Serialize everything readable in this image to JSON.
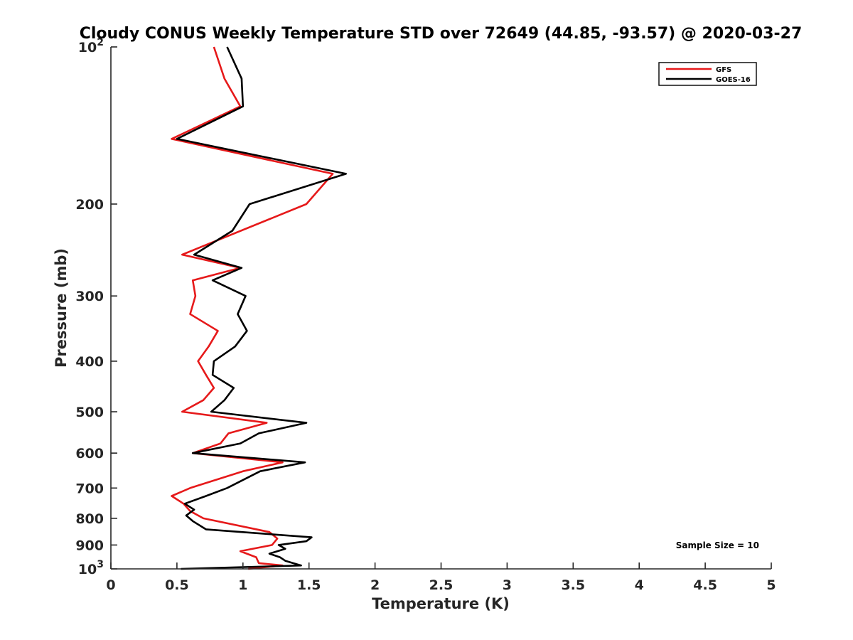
{
  "chart_data": {
    "type": "line",
    "title": "Cloudy CONUS Weekly Temperature STD over 72649 (44.85, -93.57) @ 2020-03-27",
    "xlabel": "Temperature (K)",
    "ylabel": "Pressure (mb)",
    "xlim": [
      0,
      5
    ],
    "ylim": [
      1000,
      100
    ],
    "yscale": "log",
    "y_reversed": true,
    "grid": false,
    "legend_position": "top-right",
    "x_ticks": [
      "0",
      "0.5",
      "1",
      "1.5",
      "2",
      "2.5",
      "3",
      "3.5",
      "4",
      "4.5",
      "5"
    ],
    "y_ticks": [
      {
        "value": 100,
        "base": "10",
        "exp": "2"
      },
      {
        "value": 200,
        "label": "200"
      },
      {
        "value": 300,
        "label": "300"
      },
      {
        "value": 400,
        "label": "400"
      },
      {
        "value": 500,
        "label": "500"
      },
      {
        "value": 600,
        "label": "600"
      },
      {
        "value": 700,
        "label": "700"
      },
      {
        "value": 800,
        "label": "800"
      },
      {
        "value": 900,
        "label": "900"
      },
      {
        "value": 1000,
        "base": "10",
        "exp": "3"
      }
    ],
    "annotation": "Sample Size = 10",
    "series": [
      {
        "name": "GFS",
        "color": "#e6191a",
        "points": [
          {
            "x": 0.78,
            "y": 100
          },
          {
            "x": 0.86,
            "y": 115
          },
          {
            "x": 0.98,
            "y": 130
          },
          {
            "x": 0.46,
            "y": 150
          },
          {
            "x": 1.68,
            "y": 175
          },
          {
            "x": 1.48,
            "y": 200
          },
          {
            "x": 0.54,
            "y": 250
          },
          {
            "x": 0.98,
            "y": 265
          },
          {
            "x": 0.62,
            "y": 280
          },
          {
            "x": 0.64,
            "y": 300
          },
          {
            "x": 0.6,
            "y": 325
          },
          {
            "x": 0.81,
            "y": 350
          },
          {
            "x": 0.74,
            "y": 375
          },
          {
            "x": 0.66,
            "y": 400
          },
          {
            "x": 0.72,
            "y": 425
          },
          {
            "x": 0.78,
            "y": 450
          },
          {
            "x": 0.7,
            "y": 475
          },
          {
            "x": 0.54,
            "y": 500
          },
          {
            "x": 1.18,
            "y": 525
          },
          {
            "x": 0.89,
            "y": 550
          },
          {
            "x": 0.83,
            "y": 575
          },
          {
            "x": 0.62,
            "y": 600
          },
          {
            "x": 1.3,
            "y": 625
          },
          {
            "x": 1.0,
            "y": 650
          },
          {
            "x": 0.6,
            "y": 700
          },
          {
            "x": 0.46,
            "y": 725
          },
          {
            "x": 0.55,
            "y": 750
          },
          {
            "x": 0.6,
            "y": 775
          },
          {
            "x": 0.7,
            "y": 800
          },
          {
            "x": 1.2,
            "y": 850
          },
          {
            "x": 1.26,
            "y": 875
          },
          {
            "x": 1.22,
            "y": 900
          },
          {
            "x": 0.98,
            "y": 925
          },
          {
            "x": 1.1,
            "y": 950
          },
          {
            "x": 1.12,
            "y": 975
          },
          {
            "x": 1.3,
            "y": 985
          },
          {
            "x": 1.04,
            "y": 1000
          }
        ]
      },
      {
        "name": "GOES-16",
        "color": "#000000",
        "points": [
          {
            "x": 0.88,
            "y": 100
          },
          {
            "x": 0.99,
            "y": 115
          },
          {
            "x": 1.0,
            "y": 130
          },
          {
            "x": 0.5,
            "y": 150
          },
          {
            "x": 1.78,
            "y": 175
          },
          {
            "x": 1.05,
            "y": 200
          },
          {
            "x": 0.92,
            "y": 225
          },
          {
            "x": 0.63,
            "y": 250
          },
          {
            "x": 0.99,
            "y": 265
          },
          {
            "x": 0.77,
            "y": 280
          },
          {
            "x": 1.02,
            "y": 300
          },
          {
            "x": 0.96,
            "y": 325
          },
          {
            "x": 1.03,
            "y": 350
          },
          {
            "x": 0.94,
            "y": 375
          },
          {
            "x": 0.78,
            "y": 400
          },
          {
            "x": 0.77,
            "y": 425
          },
          {
            "x": 0.93,
            "y": 450
          },
          {
            "x": 0.86,
            "y": 475
          },
          {
            "x": 0.76,
            "y": 500
          },
          {
            "x": 1.48,
            "y": 525
          },
          {
            "x": 1.12,
            "y": 550
          },
          {
            "x": 0.98,
            "y": 575
          },
          {
            "x": 0.62,
            "y": 600
          },
          {
            "x": 1.47,
            "y": 625
          },
          {
            "x": 1.13,
            "y": 650
          },
          {
            "x": 0.88,
            "y": 700
          },
          {
            "x": 0.72,
            "y": 725
          },
          {
            "x": 0.56,
            "y": 750
          },
          {
            "x": 0.63,
            "y": 770
          },
          {
            "x": 0.57,
            "y": 790
          },
          {
            "x": 0.62,
            "y": 810
          },
          {
            "x": 0.72,
            "y": 840
          },
          {
            "x": 1.52,
            "y": 870
          },
          {
            "x": 1.48,
            "y": 885
          },
          {
            "x": 1.27,
            "y": 900
          },
          {
            "x": 1.32,
            "y": 915
          },
          {
            "x": 1.2,
            "y": 935
          },
          {
            "x": 1.28,
            "y": 950
          },
          {
            "x": 1.32,
            "y": 965
          },
          {
            "x": 1.44,
            "y": 985
          },
          {
            "x": 0.53,
            "y": 1000
          }
        ]
      }
    ]
  }
}
